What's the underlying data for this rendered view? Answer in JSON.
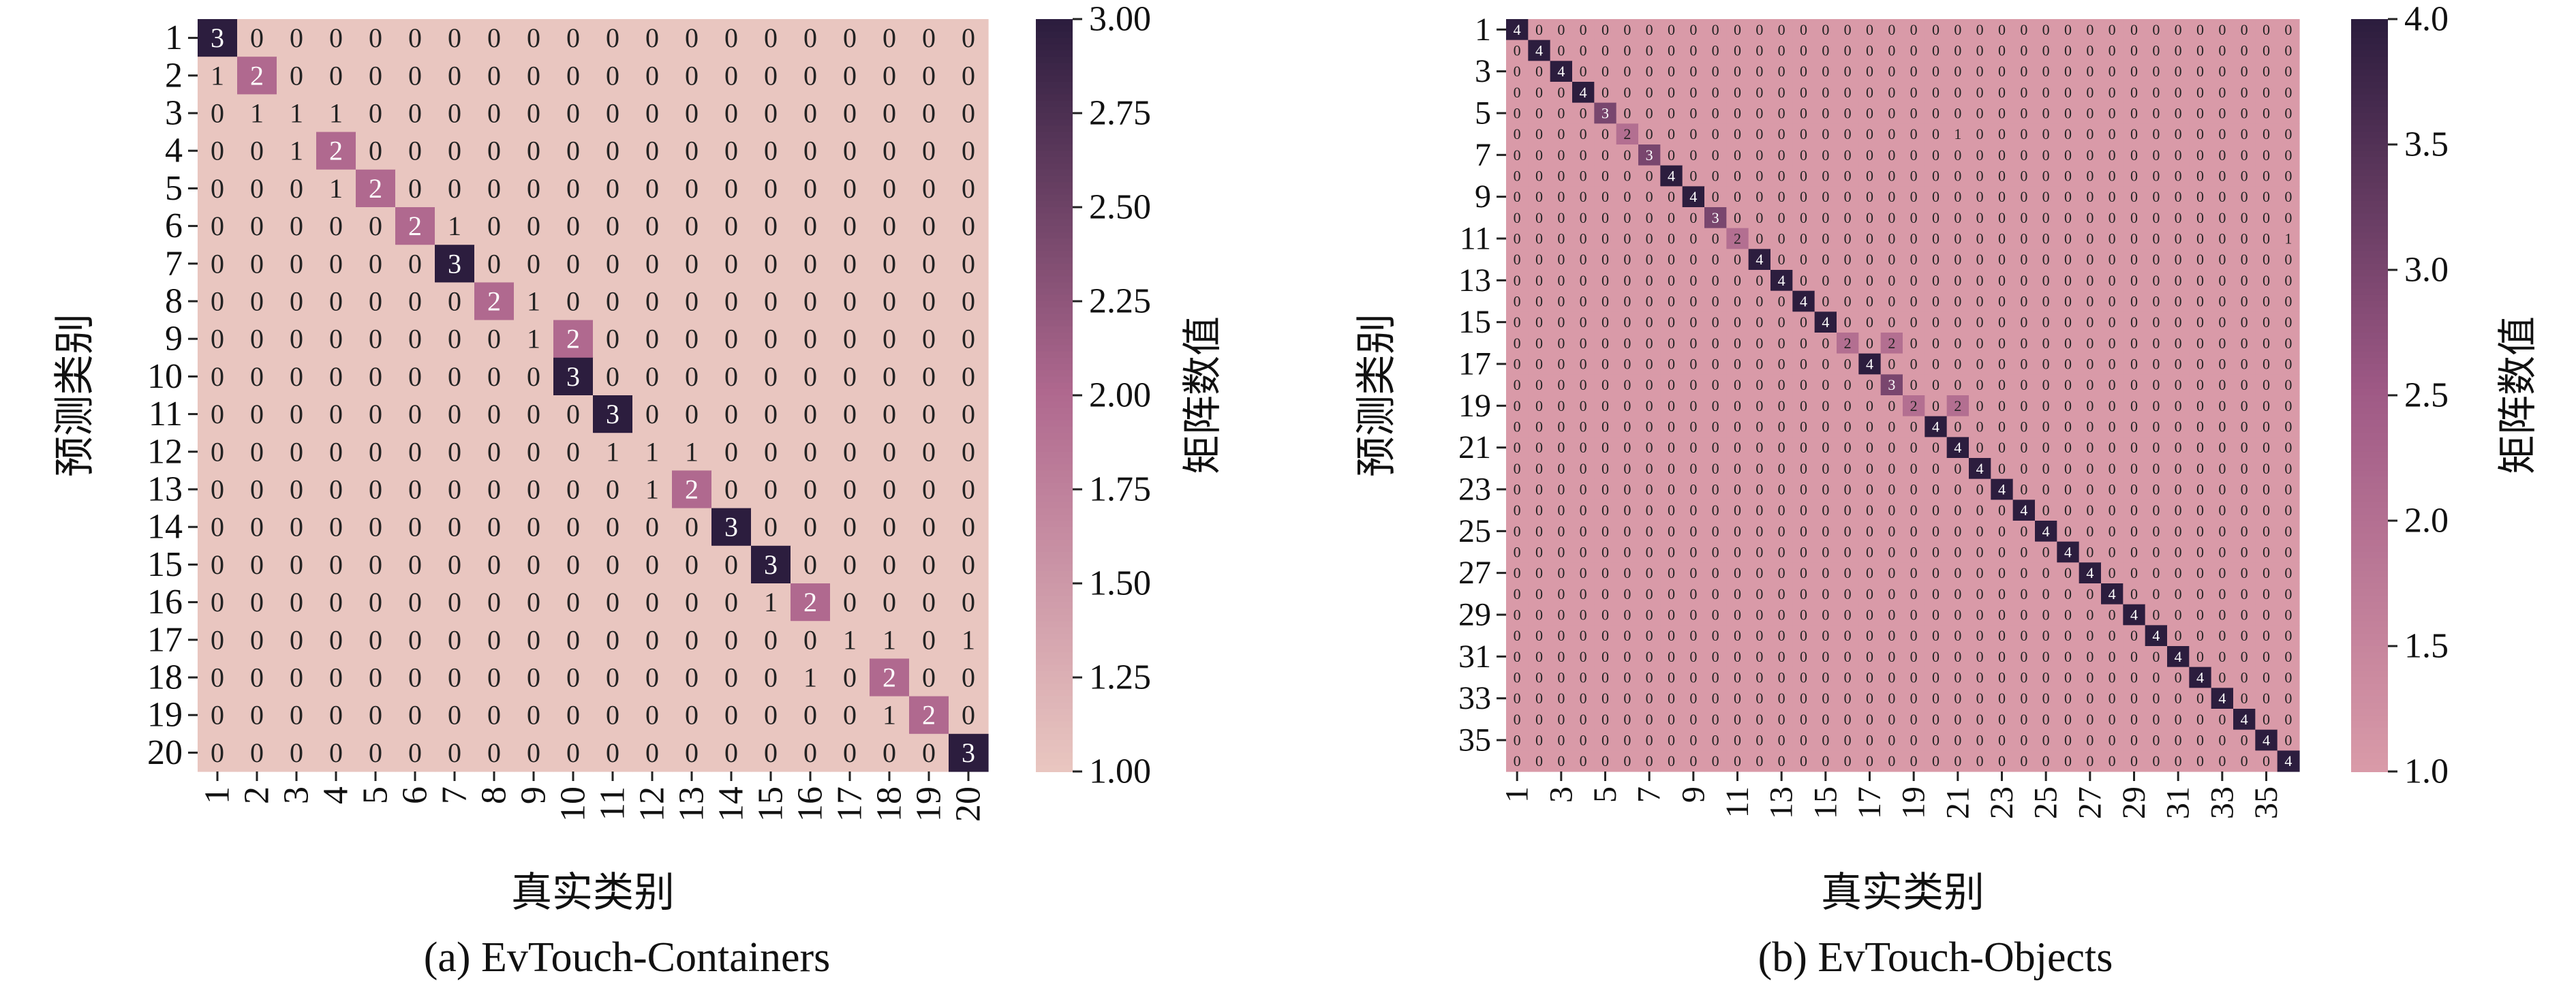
{
  "chart_data": [
    {
      "type": "heatmap",
      "title": "(a) EvTouch-Containers",
      "xlabel": "真实类别",
      "ylabel": "预测类别",
      "colorbar_label": "矩阵数值",
      "x_categories": [
        "1",
        "2",
        "3",
        "4",
        "5",
        "6",
        "7",
        "8",
        "9",
        "10",
        "11",
        "12",
        "13",
        "14",
        "15",
        "16",
        "17",
        "18",
        "19",
        "20"
      ],
      "y_categories": [
        "1",
        "2",
        "3",
        "4",
        "5",
        "6",
        "7",
        "8",
        "9",
        "10",
        "11",
        "12",
        "13",
        "14",
        "15",
        "16",
        "17",
        "18",
        "19",
        "20"
      ],
      "values": [
        [
          3,
          0,
          0,
          0,
          0,
          0,
          0,
          0,
          0,
          0,
          0,
          0,
          0,
          0,
          0,
          0,
          0,
          0,
          0,
          0
        ],
        [
          1,
          2,
          0,
          0,
          0,
          0,
          0,
          0,
          0,
          0,
          0,
          0,
          0,
          0,
          0,
          0,
          0,
          0,
          0,
          0
        ],
        [
          0,
          1,
          1,
          1,
          0,
          0,
          0,
          0,
          0,
          0,
          0,
          0,
          0,
          0,
          0,
          0,
          0,
          0,
          0,
          0
        ],
        [
          0,
          0,
          1,
          2,
          0,
          0,
          0,
          0,
          0,
          0,
          0,
          0,
          0,
          0,
          0,
          0,
          0,
          0,
          0,
          0
        ],
        [
          0,
          0,
          0,
          1,
          2,
          0,
          0,
          0,
          0,
          0,
          0,
          0,
          0,
          0,
          0,
          0,
          0,
          0,
          0,
          0
        ],
        [
          0,
          0,
          0,
          0,
          0,
          2,
          1,
          0,
          0,
          0,
          0,
          0,
          0,
          0,
          0,
          0,
          0,
          0,
          0,
          0
        ],
        [
          0,
          0,
          0,
          0,
          0,
          0,
          3,
          0,
          0,
          0,
          0,
          0,
          0,
          0,
          0,
          0,
          0,
          0,
          0,
          0
        ],
        [
          0,
          0,
          0,
          0,
          0,
          0,
          0,
          2,
          1,
          0,
          0,
          0,
          0,
          0,
          0,
          0,
          0,
          0,
          0,
          0
        ],
        [
          0,
          0,
          0,
          0,
          0,
          0,
          0,
          0,
          1,
          2,
          0,
          0,
          0,
          0,
          0,
          0,
          0,
          0,
          0,
          0
        ],
        [
          0,
          0,
          0,
          0,
          0,
          0,
          0,
          0,
          0,
          3,
          0,
          0,
          0,
          0,
          0,
          0,
          0,
          0,
          0,
          0
        ],
        [
          0,
          0,
          0,
          0,
          0,
          0,
          0,
          0,
          0,
          0,
          3,
          0,
          0,
          0,
          0,
          0,
          0,
          0,
          0,
          0
        ],
        [
          0,
          0,
          0,
          0,
          0,
          0,
          0,
          0,
          0,
          0,
          1,
          1,
          1,
          0,
          0,
          0,
          0,
          0,
          0,
          0
        ],
        [
          0,
          0,
          0,
          0,
          0,
          0,
          0,
          0,
          0,
          0,
          0,
          1,
          2,
          0,
          0,
          0,
          0,
          0,
          0,
          0
        ],
        [
          0,
          0,
          0,
          0,
          0,
          0,
          0,
          0,
          0,
          0,
          0,
          0,
          0,
          3,
          0,
          0,
          0,
          0,
          0,
          0
        ],
        [
          0,
          0,
          0,
          0,
          0,
          0,
          0,
          0,
          0,
          0,
          0,
          0,
          0,
          0,
          3,
          0,
          0,
          0,
          0,
          0
        ],
        [
          0,
          0,
          0,
          0,
          0,
          0,
          0,
          0,
          0,
          0,
          0,
          0,
          0,
          0,
          1,
          2,
          0,
          0,
          0,
          0
        ],
        [
          0,
          0,
          0,
          0,
          0,
          0,
          0,
          0,
          0,
          0,
          0,
          0,
          0,
          0,
          0,
          0,
          1,
          1,
          0,
          1
        ],
        [
          0,
          0,
          0,
          0,
          0,
          0,
          0,
          0,
          0,
          0,
          0,
          0,
          0,
          0,
          0,
          1,
          0,
          2,
          0,
          0
        ],
        [
          0,
          0,
          0,
          0,
          0,
          0,
          0,
          0,
          0,
          0,
          0,
          0,
          0,
          0,
          0,
          0,
          0,
          1,
          2,
          0
        ],
        [
          0,
          0,
          0,
          0,
          0,
          0,
          0,
          0,
          0,
          0,
          0,
          0,
          0,
          0,
          0,
          0,
          0,
          0,
          0,
          3
        ]
      ],
      "color_range": [
        1.0,
        3.0
      ],
      "colorbar_ticks": [
        "1.00",
        "1.25",
        "1.50",
        "1.75",
        "2.00",
        "2.25",
        "2.50",
        "2.75",
        "3.00"
      ],
      "colormap": {
        "low": "#e9c6c0",
        "mid": "#b0698f",
        "high": "#2c1d3e"
      }
    },
    {
      "type": "heatmap",
      "title": "(b) EvTouch-Objects",
      "xlabel": "真实类别",
      "ylabel": "预测类别",
      "colorbar_label": "矩阵数值",
      "x_tick_labels": [
        "1",
        "3",
        "5",
        "7",
        "9",
        "11",
        "13",
        "15",
        "17",
        "19",
        "21",
        "23",
        "25",
        "27",
        "29",
        "31",
        "33",
        "35"
      ],
      "y_tick_labels": [
        "1",
        "3",
        "5",
        "7",
        "9",
        "11",
        "13",
        "15",
        "17",
        "19",
        "21",
        "23",
        "25",
        "27",
        "29",
        "31",
        "33",
        "35"
      ],
      "n": 36,
      "cells": [
        {
          "row": 1,
          "col": 1,
          "value": 4
        },
        {
          "row": 2,
          "col": 2,
          "value": 4
        },
        {
          "row": 3,
          "col": 3,
          "value": 4
        },
        {
          "row": 4,
          "col": 4,
          "value": 4
        },
        {
          "row": 5,
          "col": 5,
          "value": 3
        },
        {
          "row": 6,
          "col": 6,
          "value": 2
        },
        {
          "row": 6,
          "col": 21,
          "value": 1
        },
        {
          "row": 7,
          "col": 7,
          "value": 3
        },
        {
          "row": 8,
          "col": 8,
          "value": 4
        },
        {
          "row": 9,
          "col": 9,
          "value": 4
        },
        {
          "row": 10,
          "col": 10,
          "value": 3
        },
        {
          "row": 11,
          "col": 11,
          "value": 2
        },
        {
          "row": 11,
          "col": 36,
          "value": 1
        },
        {
          "row": 12,
          "col": 12,
          "value": 4
        },
        {
          "row": 13,
          "col": 13,
          "value": 4
        },
        {
          "row": 14,
          "col": 14,
          "value": 4
        },
        {
          "row": 15,
          "col": 15,
          "value": 4
        },
        {
          "row": 16,
          "col": 16,
          "value": 2
        },
        {
          "row": 16,
          "col": 18,
          "value": 2
        },
        {
          "row": 17,
          "col": 17,
          "value": 4
        },
        {
          "row": 18,
          "col": 18,
          "value": 3
        },
        {
          "row": 19,
          "col": 19,
          "value": 2
        },
        {
          "row": 19,
          "col": 21,
          "value": 2
        },
        {
          "row": 20,
          "col": 20,
          "value": 4
        },
        {
          "row": 21,
          "col": 21,
          "value": 4
        },
        {
          "row": 22,
          "col": 22,
          "value": 4
        },
        {
          "row": 23,
          "col": 23,
          "value": 4
        },
        {
          "row": 24,
          "col": 24,
          "value": 4
        },
        {
          "row": 25,
          "col": 25,
          "value": 4
        },
        {
          "row": 26,
          "col": 26,
          "value": 4
        },
        {
          "row": 27,
          "col": 27,
          "value": 4
        },
        {
          "row": 28,
          "col": 28,
          "value": 4
        },
        {
          "row": 29,
          "col": 29,
          "value": 4
        },
        {
          "row": 30,
          "col": 30,
          "value": 4
        },
        {
          "row": 31,
          "col": 31,
          "value": 4
        },
        {
          "row": 32,
          "col": 32,
          "value": 4
        },
        {
          "row": 33,
          "col": 33,
          "value": 4
        },
        {
          "row": 34,
          "col": 34,
          "value": 4
        },
        {
          "row": 35,
          "col": 35,
          "value": 4
        },
        {
          "row": 36,
          "col": 36,
          "value": 4
        }
      ],
      "default_value": 0,
      "color_range": [
        1.0,
        4.0
      ],
      "colorbar_ticks": [
        "1.0",
        "1.5",
        "2.0",
        "2.5",
        "3.0",
        "3.5",
        "4.0"
      ],
      "colormap": {
        "low": "#d99aa8",
        "mid": "#a05a86",
        "high": "#2c1d3e"
      }
    }
  ]
}
